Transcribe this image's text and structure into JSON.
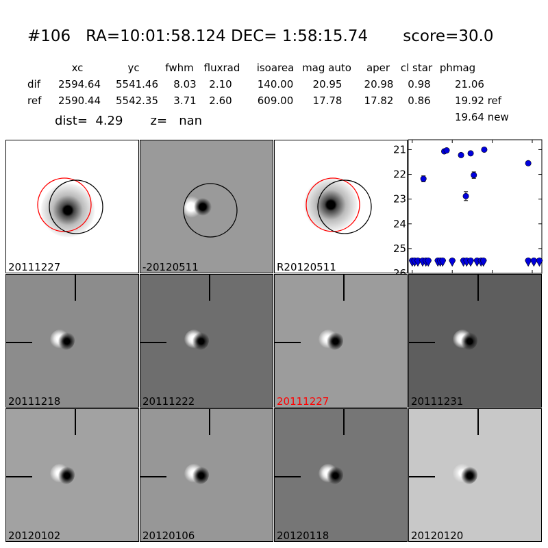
{
  "header": {
    "title": "#106   RA=10:01:58.124 DEC= 1:58:15.74       score=30.0",
    "columns": [
      "xc",
      "yc",
      "fwhm",
      "fluxrad",
      "isoarea",
      "mag auto",
      "aper",
      "cl star",
      "phmag"
    ],
    "dif": {
      "label": "dif",
      "values": [
        "2594.64",
        "5541.46",
        "8.03",
        "2.10",
        "140.00",
        "20.95",
        "20.98",
        "0.98",
        "21.06"
      ]
    },
    "ref": {
      "label": "ref",
      "values": [
        "2590.44",
        "5542.35",
        "3.71",
        "2.60",
        "609.00",
        "17.78",
        "17.82",
        "0.86",
        "19.92 ref"
      ]
    },
    "new_phmag": "19.64 new",
    "dist_line": "dist=  4.29       z=   nan"
  },
  "top_panels": [
    {
      "label": "20111227",
      "label_color": "#000000"
    },
    {
      "label": "-20120511",
      "label_color": "#000000"
    },
    {
      "label": "R20120511",
      "label_color": "#000000"
    }
  ],
  "stamps": [
    {
      "label": "20111218",
      "label_color": "#000000",
      "bg": "#8c8c8c"
    },
    {
      "label": "20111222",
      "label_color": "#000000",
      "bg": "#6e6e6e"
    },
    {
      "label": "20111227",
      "label_color": "#ff0000",
      "bg": "#9c9c9c"
    },
    {
      "label": "20111231",
      "label_color": "#000000",
      "bg": "#5e5e5e"
    },
    {
      "label": "20120102",
      "label_color": "#000000",
      "bg": "#a2a2a2"
    },
    {
      "label": "20120106",
      "label_color": "#000000",
      "bg": "#979797"
    },
    {
      "label": "20120118",
      "label_color": "#000000",
      "bg": "#767676"
    },
    {
      "label": "20120120",
      "label_color": "#000000",
      "bg": "#c8c8c8"
    }
  ],
  "chart_data": {
    "type": "scatter",
    "xlim": [
      -5,
      162
    ],
    "ylim": [
      26,
      20.6
    ],
    "xticks": [
      "0",
      "50",
      "100",
      "150"
    ],
    "yticks": [
      "21",
      "22",
      "23",
      "24",
      "25",
      "26"
    ],
    "points": [
      {
        "x": 14,
        "y": 22.18,
        "err": 0.12
      },
      {
        "x": 40,
        "y": 21.07,
        "err": 0.05
      },
      {
        "x": 43,
        "y": 21.03,
        "err": 0.05
      },
      {
        "x": 61,
        "y": 21.22,
        "err": 0.05
      },
      {
        "x": 67,
        "y": 22.88,
        "err": 0.18
      },
      {
        "x": 73,
        "y": 21.15,
        "err": 0.05
      },
      {
        "x": 77,
        "y": 22.03,
        "err": 0.13
      },
      {
        "x": 90,
        "y": 21.0,
        "err": 0.05
      },
      {
        "x": 145,
        "y": 21.55,
        "err": 0.05
      }
    ],
    "upper_limits": [
      {
        "x": 0,
        "y": 25.55
      },
      {
        "x": 3,
        "y": 25.55
      },
      {
        "x": 7,
        "y": 25.55
      },
      {
        "x": 13,
        "y": 25.55
      },
      {
        "x": 17,
        "y": 25.55
      },
      {
        "x": 20,
        "y": 25.55
      },
      {
        "x": 32,
        "y": 25.55
      },
      {
        "x": 35,
        "y": 25.55
      },
      {
        "x": 38,
        "y": 25.55
      },
      {
        "x": 50,
        "y": 25.55
      },
      {
        "x": 64,
        "y": 25.55
      },
      {
        "x": 68,
        "y": 25.55
      },
      {
        "x": 73,
        "y": 25.55
      },
      {
        "x": 81,
        "y": 25.55
      },
      {
        "x": 86,
        "y": 25.55
      },
      {
        "x": 89,
        "y": 25.55
      },
      {
        "x": 145,
        "y": 25.55
      },
      {
        "x": 152,
        "y": 25.55
      },
      {
        "x": 159,
        "y": 25.55
      }
    ],
    "marker_color": "#0000dd"
  }
}
